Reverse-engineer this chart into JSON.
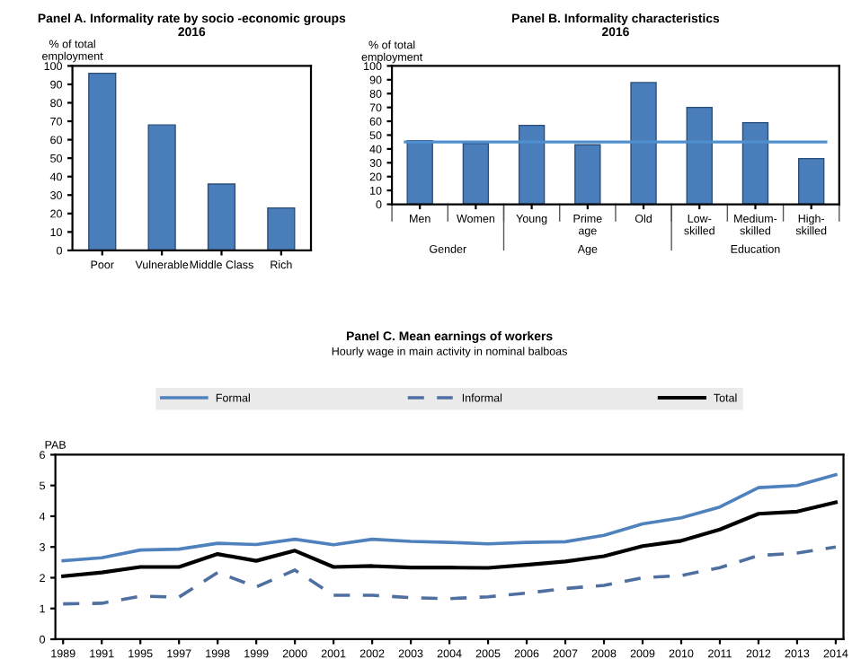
{
  "chart_data": [
    {
      "type": "bar",
      "title": "Panel A. Informality rate by socio -economic groups\n2016",
      "ylabel": "% of total\nemployment",
      "categories": [
        "Poor",
        "Vulnerable",
        "Middle Class",
        "Rich"
      ],
      "values": [
        96,
        68,
        36,
        23
      ],
      "color": "#4a7ebb",
      "ylim": [
        0,
        100
      ],
      "yticks": [
        0,
        10,
        20,
        30,
        40,
        50,
        60,
        70,
        80,
        90,
        100
      ],
      "grid": false
    },
    {
      "type": "bar",
      "title": "Panel B. Informality characteristics\n2016",
      "ylabel": "% of total\nemployment",
      "categories": [
        "Men",
        "Women",
        "Young",
        "Prime\nage",
        "Old",
        "Low-\nskilled",
        "Medium-\nskilled",
        "High-\nskilled"
      ],
      "values": [
        46,
        44,
        57,
        43,
        88,
        70,
        59,
        33
      ],
      "color": "#4a7ebb",
      "ylim": [
        0,
        100
      ],
      "yticks": [
        0,
        10,
        20,
        30,
        40,
        50,
        60,
        70,
        80,
        90,
        100
      ],
      "ref_lines": [
        {
          "axis": "y",
          "value": 45,
          "color": "#4f8fce"
        }
      ],
      "annotations": [
        "Gender",
        "Age",
        "Education"
      ],
      "grid": false
    },
    {
      "type": "line",
      "title": "Panel C. Mean earnings of workers",
      "subtitle": "Hourly wage in main activity in nominal balboas",
      "ylabel": "PAB",
      "categories": [
        "1989",
        "1991",
        "1995",
        "1997",
        "1998",
        "1999",
        "2000",
        "2001",
        "2002",
        "2003",
        "2004",
        "2005",
        "2006",
        "2007",
        "2008",
        "2009",
        "2010",
        "2011",
        "2012",
        "2013",
        "2014"
      ],
      "ylim": [
        0,
        6
      ],
      "yticks": [
        0,
        1,
        2,
        3,
        4,
        5,
        6
      ],
      "grid": false,
      "legend": "top",
      "marker": "none",
      "series": [
        {
          "name": "Formal",
          "color": "#4f81bd",
          "line_style": "solid",
          "values": [
            2.55,
            2.65,
            2.9,
            2.93,
            3.12,
            3.08,
            3.25,
            3.07,
            3.25,
            3.18,
            3.15,
            3.1,
            3.15,
            3.17,
            3.38,
            3.75,
            3.95,
            4.3,
            4.93,
            5.0,
            5.35
          ]
        },
        {
          "name": "Informal",
          "color": "#4f6fa0",
          "line_style": "dashed",
          "values": [
            1.15,
            1.17,
            1.4,
            1.37,
            2.17,
            1.7,
            2.25,
            1.43,
            1.43,
            1.35,
            1.32,
            1.38,
            1.5,
            1.65,
            1.75,
            2.0,
            2.07,
            2.33,
            2.72,
            2.8,
            3.0
          ]
        },
        {
          "name": "Total",
          "color": "#000000",
          "line_style": "solid",
          "values": [
            2.05,
            2.17,
            2.35,
            2.35,
            2.77,
            2.55,
            2.88,
            2.35,
            2.38,
            2.33,
            2.33,
            2.32,
            2.42,
            2.53,
            2.7,
            3.03,
            3.2,
            3.57,
            4.08,
            4.15,
            4.45
          ]
        }
      ]
    }
  ]
}
